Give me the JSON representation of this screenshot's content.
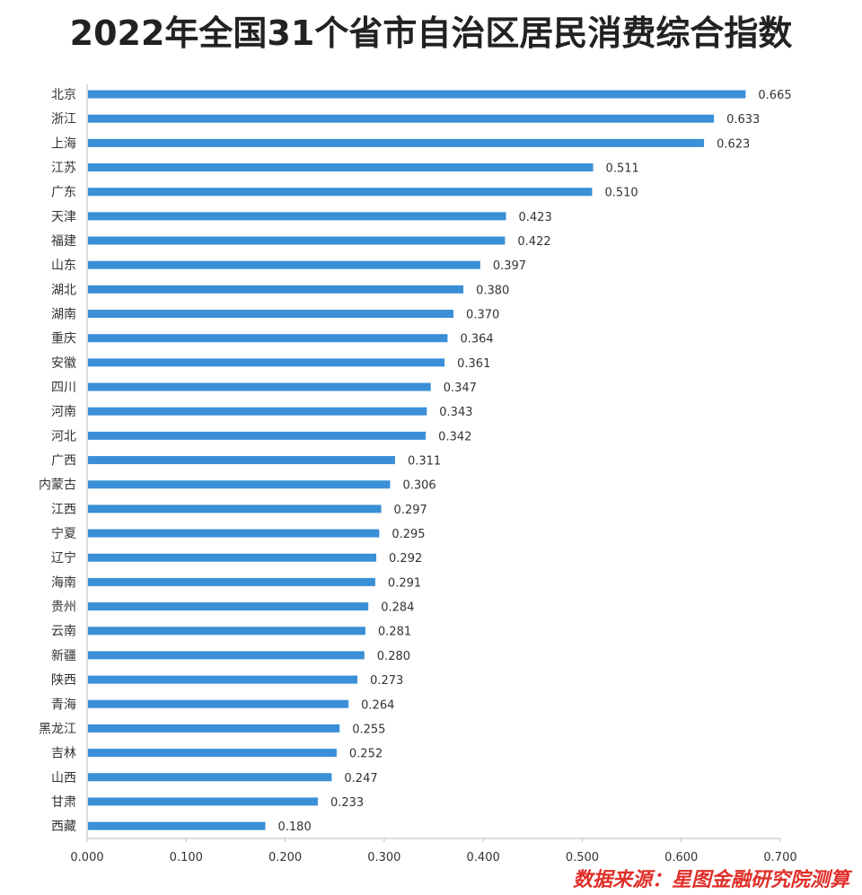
{
  "chart_data": {
    "type": "bar",
    "orientation": "horizontal",
    "title": "2022年全国31个省市自治区居民消费综合指数",
    "source": "数据来源：星图金融研究院测算",
    "categories": [
      "北京",
      "浙江",
      "上海",
      "江苏",
      "广东",
      "天津",
      "福建",
      "山东",
      "湖北",
      "湖南",
      "重庆",
      "安徽",
      "四川",
      "河南",
      "河北",
      "广西",
      "内蒙古",
      "江西",
      "宁夏",
      "辽宁",
      "海南",
      "贵州",
      "云南",
      "新疆",
      "陕西",
      "青海",
      "黑龙江",
      "吉林",
      "山西",
      "甘肃",
      "西藏"
    ],
    "values": [
      0.665,
      0.633,
      0.623,
      0.511,
      0.51,
      0.423,
      0.422,
      0.397,
      0.38,
      0.37,
      0.364,
      0.361,
      0.347,
      0.343,
      0.342,
      0.311,
      0.306,
      0.297,
      0.295,
      0.292,
      0.291,
      0.284,
      0.281,
      0.28,
      0.273,
      0.264,
      0.255,
      0.252,
      0.247,
      0.233,
      0.18
    ],
    "value_labels": [
      "0.665",
      "0.633",
      "0.623",
      "0.511",
      "0.510",
      "0.423",
      "0.422",
      "0.397",
      "0.380",
      "0.370",
      "0.364",
      "0.361",
      "0.347",
      "0.343",
      "0.342",
      "0.311",
      "0.306",
      "0.297",
      "0.295",
      "0.292",
      "0.291",
      "0.284",
      "0.281",
      "0.280",
      "0.273",
      "0.264",
      "0.255",
      "0.252",
      "0.247",
      "0.233",
      "0.180"
    ],
    "xlim": [
      0,
      0.7
    ],
    "x_ticks": [
      "0.000",
      "0.100",
      "0.200",
      "0.300",
      "0.400",
      "0.500",
      "0.600",
      "0.700"
    ],
    "grid": false,
    "bar_color": "#3a8fd6",
    "source_color": "#e0302a",
    "xlabel": "",
    "ylabel": ""
  }
}
